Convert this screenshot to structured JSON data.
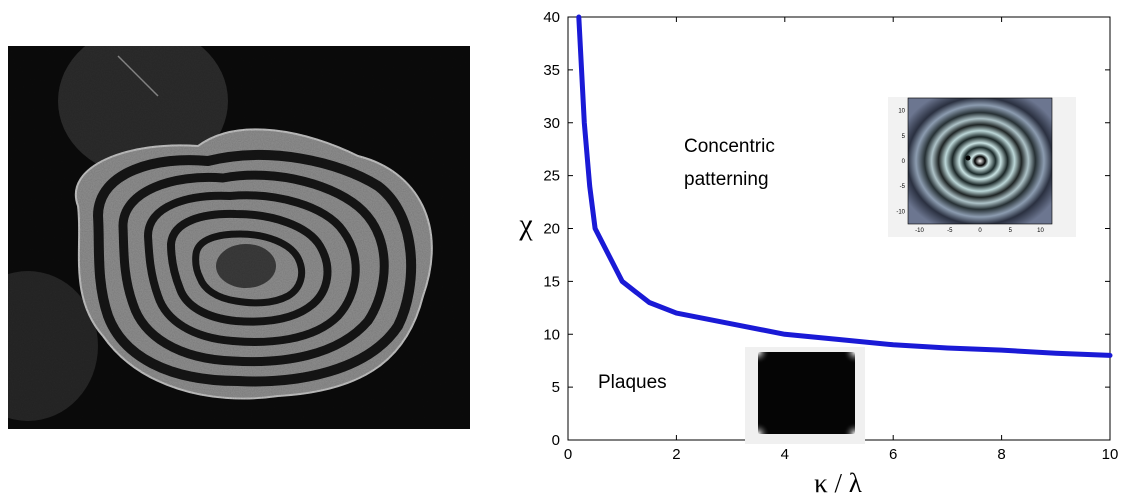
{
  "chart_data": {
    "type": "line",
    "xlabel": "κ / λ",
    "ylabel": "χ",
    "xlim": [
      0,
      10
    ],
    "ylim": [
      0,
      40
    ],
    "x_ticks": [
      0,
      2,
      4,
      6,
      8,
      10
    ],
    "y_ticks": [
      0,
      5,
      10,
      15,
      20,
      25,
      30,
      35,
      40
    ],
    "series": [
      {
        "x": [
          0.2,
          0.3,
          0.4,
          0.5,
          1.0,
          1.5,
          2.0,
          3.0,
          4.0,
          5.0,
          6.0,
          7.0,
          8.0,
          9.0,
          10.0
        ],
        "y": [
          40,
          30,
          24,
          20,
          15,
          13,
          12,
          11,
          10,
          9.5,
          9,
          8.7,
          8.5,
          8.2,
          8
        ],
        "color": "#1a1ad6"
      }
    ],
    "annotations": [
      {
        "lines": [
          "Concentric",
          "patterning"
        ]
      },
      {
        "lines": [
          "Plaques"
        ]
      }
    ],
    "insets": [
      {
        "pattern": "concentric-rings",
        "x_ticks": [
          -10,
          -5,
          0,
          5,
          10
        ],
        "y_ticks": [
          10,
          5,
          0,
          -5,
          -10
        ]
      },
      {
        "pattern": "plaques",
        "x_ticks": [],
        "y_ticks": []
      }
    ]
  },
  "photo": {
    "icon": "concentric-ring-colony-photo"
  }
}
